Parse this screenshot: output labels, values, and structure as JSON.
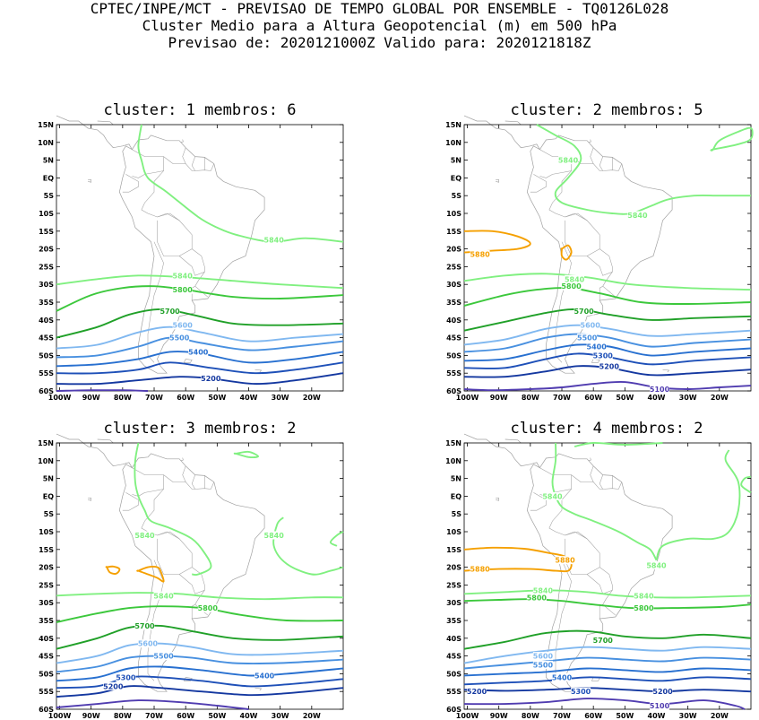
{
  "header": {
    "line1": "CPTEC/INPE/MCT - PREVISAO DE TEMPO GLOBAL POR ENSEMBLE - TQ0126L028",
    "line2": "Cluster Medio para a Altura Geopotencial (m) em 500 hPa",
    "line3": "Previsao de: 2020121000Z   Valido para: 2020121818Z"
  },
  "axes": {
    "lat_labels": [
      "15N",
      "10N",
      "5N",
      "EQ",
      "5S",
      "10S",
      "15S",
      "20S",
      "25S",
      "30S",
      "35S",
      "40S",
      "45S",
      "50S",
      "55S",
      "60S"
    ],
    "lon_labels": [
      "100W",
      "90W",
      "80W",
      "70W",
      "60W",
      "50W",
      "40W",
      "30W",
      "20W"
    ]
  },
  "colors": {
    "c5880": "#f5a000",
    "c5840": "#80f080",
    "c5800": "#3cc83c",
    "c5700": "#20a028",
    "c5600": "#80b8f0",
    "c5500": "#4890e0",
    "c5400": "#2870d0",
    "c5300": "#1e50b8",
    "c5200": "#1438a0",
    "c5100": "#503cb0",
    "coast": "#a0a0a0"
  },
  "panels": [
    {
      "title": "cluster: 1   membros: 6",
      "labels": [
        {
          "text": "5840",
          "lon": -32,
          "lat": -17.5,
          "c": "c5840"
        },
        {
          "text": "5840",
          "lon": -61,
          "lat": -27.5,
          "c": "c5840"
        },
        {
          "text": "5800",
          "lon": -61,
          "lat": -31.5,
          "c": "c5800"
        },
        {
          "text": "5700",
          "lon": -65,
          "lat": -37.5,
          "c": "c5700"
        },
        {
          "text": "5600",
          "lon": -61,
          "lat": -41.5,
          "c": "c5600"
        },
        {
          "text": "5500",
          "lon": -62,
          "lat": -45,
          "c": "c5500"
        },
        {
          "text": "5400",
          "lon": -56,
          "lat": -49,
          "c": "c5400"
        },
        {
          "text": "5200",
          "lon": -52,
          "lat": -56.5,
          "c": "c5200"
        }
      ]
    },
    {
      "title": "cluster: 2   membros: 5",
      "labels": [
        {
          "text": "5840",
          "lon": -68,
          "lat": 5,
          "c": "c5840"
        },
        {
          "text": "5840",
          "lon": -46,
          "lat": -10.5,
          "c": "c5840"
        },
        {
          "text": "5880",
          "lon": -96,
          "lat": -21.5,
          "c": "c5880"
        },
        {
          "text": "5840",
          "lon": -66,
          "lat": -28.5,
          "c": "c5840"
        },
        {
          "text": "5800",
          "lon": -67,
          "lat": -30.5,
          "c": "c5800"
        },
        {
          "text": "5700",
          "lon": -63,
          "lat": -37.5,
          "c": "c5700"
        },
        {
          "text": "5600",
          "lon": -61,
          "lat": -41.5,
          "c": "c5600"
        },
        {
          "text": "5500",
          "lon": -62,
          "lat": -45,
          "c": "c5500"
        },
        {
          "text": "5400",
          "lon": -59,
          "lat": -47.5,
          "c": "c5400"
        },
        {
          "text": "5300",
          "lon": -57,
          "lat": -50,
          "c": "c5300"
        },
        {
          "text": "5200",
          "lon": -55,
          "lat": -53,
          "c": "c5200"
        },
        {
          "text": "5100",
          "lon": -39,
          "lat": -59.5,
          "c": "c5100"
        }
      ]
    },
    {
      "title": "cluster: 3   membros: 2",
      "labels": [
        {
          "text": "5840",
          "lon": -73,
          "lat": -11,
          "c": "c5840"
        },
        {
          "text": "5840",
          "lon": -32,
          "lat": -11,
          "c": "c5840"
        },
        {
          "text": "5840",
          "lon": -67,
          "lat": -28,
          "c": "c5840"
        },
        {
          "text": "5800",
          "lon": -53,
          "lat": -31.5,
          "c": "c5800"
        },
        {
          "text": "5700",
          "lon": -73,
          "lat": -36.5,
          "c": "c5700"
        },
        {
          "text": "5600",
          "lon": -72,
          "lat": -41.5,
          "c": "c5600"
        },
        {
          "text": "5500",
          "lon": -67,
          "lat": -45,
          "c": "c5500"
        },
        {
          "text": "5400",
          "lon": -35,
          "lat": -50.5,
          "c": "c5400"
        },
        {
          "text": "5300",
          "lon": -79,
          "lat": -51,
          "c": "c5300"
        },
        {
          "text": "5200",
          "lon": -83,
          "lat": -53.5,
          "c": "c5200"
        }
      ]
    },
    {
      "title": "cluster: 4   membros: 2",
      "labels": [
        {
          "text": "5840",
          "lon": -73,
          "lat": 0,
          "c": "c5840"
        },
        {
          "text": "5840",
          "lon": -40,
          "lat": -19.5,
          "c": "c5840"
        },
        {
          "text": "5880",
          "lon": -69,
          "lat": -18,
          "c": "c5880"
        },
        {
          "text": "5880",
          "lon": -96,
          "lat": -20.5,
          "c": "c5880"
        },
        {
          "text": "5840",
          "lon": -76,
          "lat": -26.5,
          "c": "c5840"
        },
        {
          "text": "5840",
          "lon": -44,
          "lat": -28,
          "c": "c5840"
        },
        {
          "text": "5800",
          "lon": -78,
          "lat": -28.5,
          "c": "c5800"
        },
        {
          "text": "5800",
          "lon": -44,
          "lat": -31.5,
          "c": "c5800"
        },
        {
          "text": "5700",
          "lon": -57,
          "lat": -40.5,
          "c": "c5700"
        },
        {
          "text": "5600",
          "lon": -76,
          "lat": -45,
          "c": "c5600"
        },
        {
          "text": "5500",
          "lon": -76,
          "lat": -47.5,
          "c": "c5500"
        },
        {
          "text": "5400",
          "lon": -70,
          "lat": -51,
          "c": "c5400"
        },
        {
          "text": "5300",
          "lon": -64,
          "lat": -55,
          "c": "c5300"
        },
        {
          "text": "5200",
          "lon": -97,
          "lat": -55,
          "c": "c5200"
        },
        {
          "text": "5200",
          "lon": -38,
          "lat": -55,
          "c": "c5200"
        },
        {
          "text": "5100",
          "lon": -39,
          "lat": -59,
          "c": "c5100"
        }
      ]
    }
  ]
}
